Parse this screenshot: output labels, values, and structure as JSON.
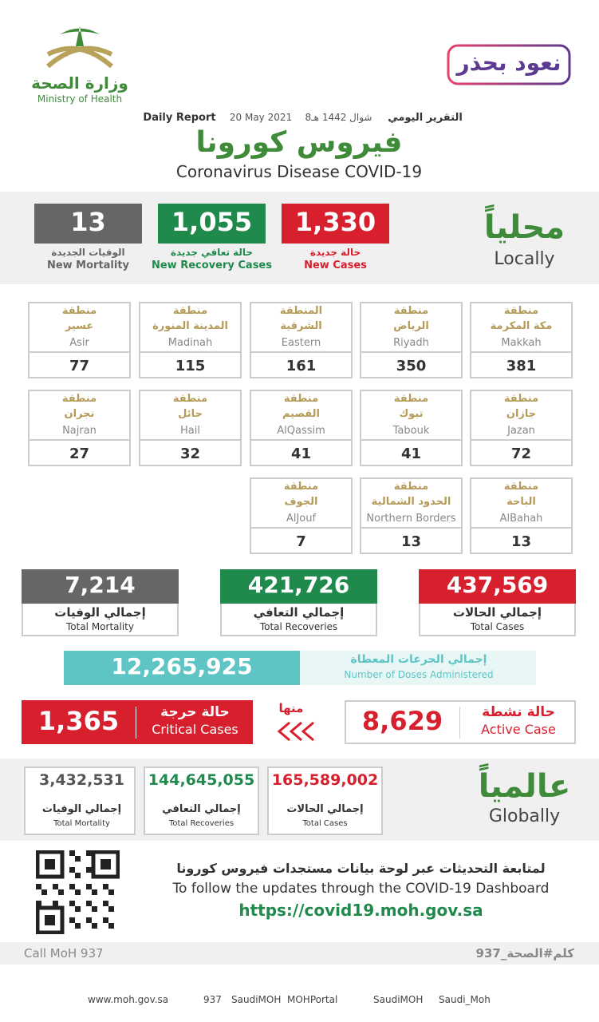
{
  "header": {
    "ministry_ar": "وزارة الصحة",
    "ministry_en": "Ministry of Health",
    "campaign": "نعود بحذر",
    "report_en": "Daily Report",
    "date": "20 May 2021",
    "hijri": "8شوال 1442 هـ",
    "report_ar": "التقرير اليومي",
    "title_ar": "فيروس كورونا",
    "title_en": "Coronavirus Disease COVID-19"
  },
  "local": {
    "label_ar": "محلياً",
    "label_en": "Locally",
    "stats": [
      {
        "value": "1,330",
        "ar": "حالة جديدة",
        "en": "New Cases"
      },
      {
        "value": "1,055",
        "ar": "حالة تعافي جديدة",
        "en": "New Recovery Cases"
      },
      {
        "value": "13",
        "ar": "الوفيات الجديدة",
        "en": "New Mortality"
      }
    ]
  },
  "regions": [
    {
      "prefix": "منطقة",
      "ar": "مكة المكرمة",
      "en": "Makkah",
      "value": "381"
    },
    {
      "prefix": "منطقة",
      "ar": "الرياض",
      "en": "Riyadh",
      "value": "350"
    },
    {
      "prefix": "المنطقة",
      "ar": "الشرقية",
      "en": "Eastern",
      "value": "161"
    },
    {
      "prefix": "منطقة",
      "ar": "المدينة المنورة",
      "en": "Madinah",
      "value": "115"
    },
    {
      "prefix": "منطقة",
      "ar": "عسير",
      "en": "Asir",
      "value": "77"
    },
    {
      "prefix": "منطقة",
      "ar": "جازان",
      "en": "Jazan",
      "value": "72"
    },
    {
      "prefix": "منطقة",
      "ar": "تبوك",
      "en": "Tabouk",
      "value": "41"
    },
    {
      "prefix": "منطقة",
      "ar": "القصيم",
      "en": "AlQassim",
      "value": "41"
    },
    {
      "prefix": "منطقة",
      "ar": "حائل",
      "en": "Hail",
      "value": "32"
    },
    {
      "prefix": "منطقة",
      "ar": "نجران",
      "en": "Najran",
      "value": "27"
    },
    {
      "prefix": "منطقة",
      "ar": "الباحة",
      "en": "AlBahah",
      "value": "13"
    },
    {
      "prefix": "منطقة",
      "ar": "الحدود الشمالية",
      "en": "Northern Borders",
      "value": "13"
    },
    {
      "prefix": "منطقة",
      "ar": "الجوف",
      "en": "AlJouf",
      "value": "7"
    }
  ],
  "totals": [
    {
      "value": "437,569",
      "ar": "إجمالي الحالات",
      "en": "Total Cases"
    },
    {
      "value": "421,726",
      "ar": "إجمالي التعافي",
      "en": "Total Recoveries"
    },
    {
      "value": "7,214",
      "ar": "إجمالي الوفيات",
      "en": "Total Mortality"
    }
  ],
  "doses": {
    "value": "12,265,925",
    "ar": "إجمالي الجرعات المعطاة",
    "en": "Number of Doses Administered"
  },
  "active": {
    "value": "8,629",
    "ar": "حالة نشطة",
    "en": "Active Case"
  },
  "of_which": "منها",
  "critical": {
    "value": "1,365",
    "ar": "حالة حرجة",
    "en": "Critical Cases"
  },
  "global": {
    "label_ar": "عالمياً",
    "label_en": "Globally",
    "stats": [
      {
        "value": "165,589,002",
        "ar": "إجمالي الحالات",
        "en": "Total Cases"
      },
      {
        "value": "144,645,055",
        "ar": "إجمالي التعافي",
        "en": "Total Recoveries"
      },
      {
        "value": "3,432,531",
        "ar": "إجمالي الوفيات",
        "en": "Total Mortality"
      }
    ]
  },
  "dashboard": {
    "ar": "لمتابعة التحديثات عبر لوحة بيانات مستجدات فيروس كورونا",
    "en": "To follow the updates through the COVID-19 Dashboard",
    "url": "https://covid19.moh.gov.sa"
  },
  "call": {
    "en": "Call MoH 937",
    "ar": "كلم#الصحة_937"
  },
  "footer": [
    "www.moh.gov.sa",
    "937",
    "SaudiMOH",
    "MOHPortal",
    "SaudiMOH",
    "Saudi_Moh"
  ]
}
